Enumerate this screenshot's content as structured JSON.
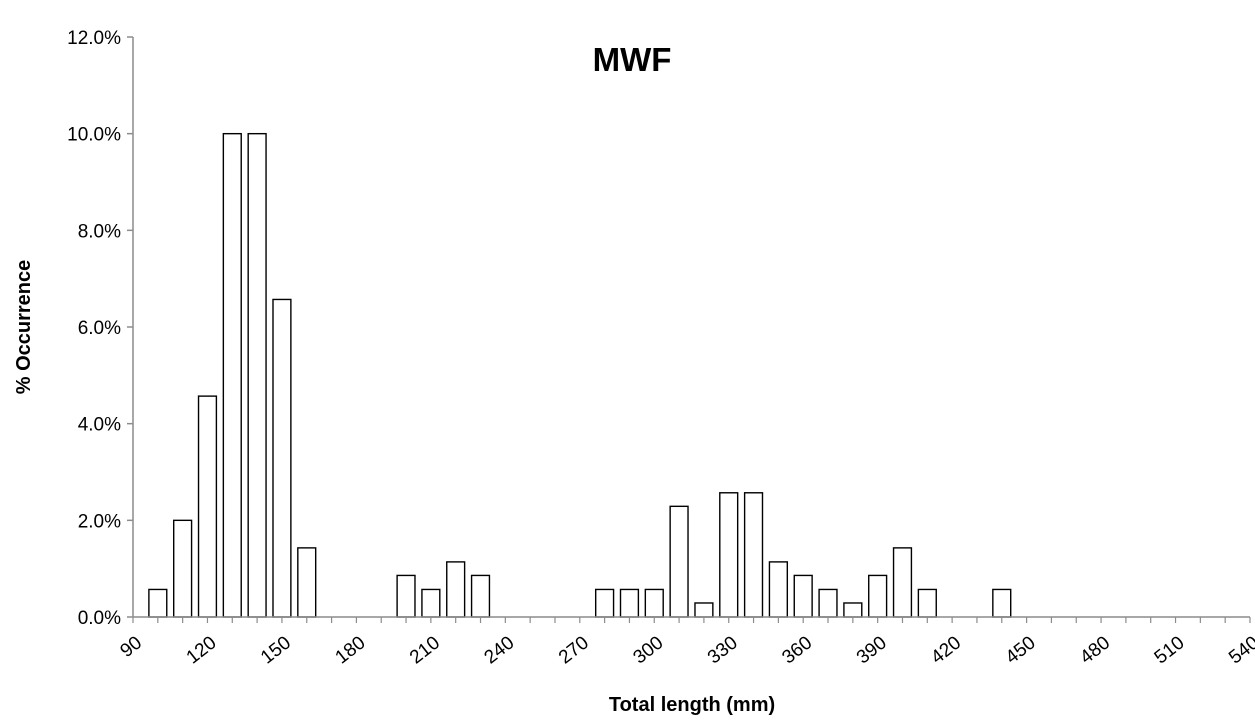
{
  "chart_data": {
    "type": "bar",
    "title": "MWF",
    "xlabel": "Total length (mm)",
    "ylabel": "% Occurrence",
    "x_ticks": [
      90,
      120,
      150,
      180,
      210,
      240,
      270,
      300,
      330,
      360,
      390,
      420,
      450,
      480,
      510,
      540
    ],
    "x_tick_labels": [
      "90",
      "120",
      "150",
      "180",
      "210",
      "240",
      "270",
      "300",
      "330",
      "360",
      "390",
      "420",
      "450",
      "480",
      "510",
      "540"
    ],
    "xlim": [
      90,
      540
    ],
    "bin_width": 10,
    "ylim": [
      0,
      12
    ],
    "y_ticks": [
      0,
      2,
      4,
      6,
      8,
      10,
      12
    ],
    "y_tick_labels": [
      "0.0%",
      "2.0%",
      "4.0%",
      "6.0%",
      "8.0%",
      "10.0%",
      "12.0%"
    ],
    "grid": false,
    "legend": "none",
    "bins": [
      {
        "x": 100,
        "value": 0.57
      },
      {
        "x": 110,
        "value": 2.0
      },
      {
        "x": 120,
        "value": 4.57
      },
      {
        "x": 130,
        "value": 10.0
      },
      {
        "x": 140,
        "value": 10.0
      },
      {
        "x": 150,
        "value": 6.57
      },
      {
        "x": 160,
        "value": 1.43
      },
      {
        "x": 200,
        "value": 0.86
      },
      {
        "x": 210,
        "value": 0.57
      },
      {
        "x": 220,
        "value": 1.14
      },
      {
        "x": 230,
        "value": 0.86
      },
      {
        "x": 280,
        "value": 0.57
      },
      {
        "x": 290,
        "value": 0.57
      },
      {
        "x": 300,
        "value": 0.57
      },
      {
        "x": 310,
        "value": 2.29
      },
      {
        "x": 320,
        "value": 0.29
      },
      {
        "x": 330,
        "value": 2.57
      },
      {
        "x": 340,
        "value": 2.57
      },
      {
        "x": 350,
        "value": 1.14
      },
      {
        "x": 360,
        "value": 0.86
      },
      {
        "x": 370,
        "value": 0.57
      },
      {
        "x": 380,
        "value": 0.29
      },
      {
        "x": 390,
        "value": 0.86
      },
      {
        "x": 400,
        "value": 1.43
      },
      {
        "x": 410,
        "value": 0.57
      },
      {
        "x": 440,
        "value": 0.57
      }
    ],
    "bar_fill": "#ffffff",
    "bar_stroke": "#000000"
  }
}
